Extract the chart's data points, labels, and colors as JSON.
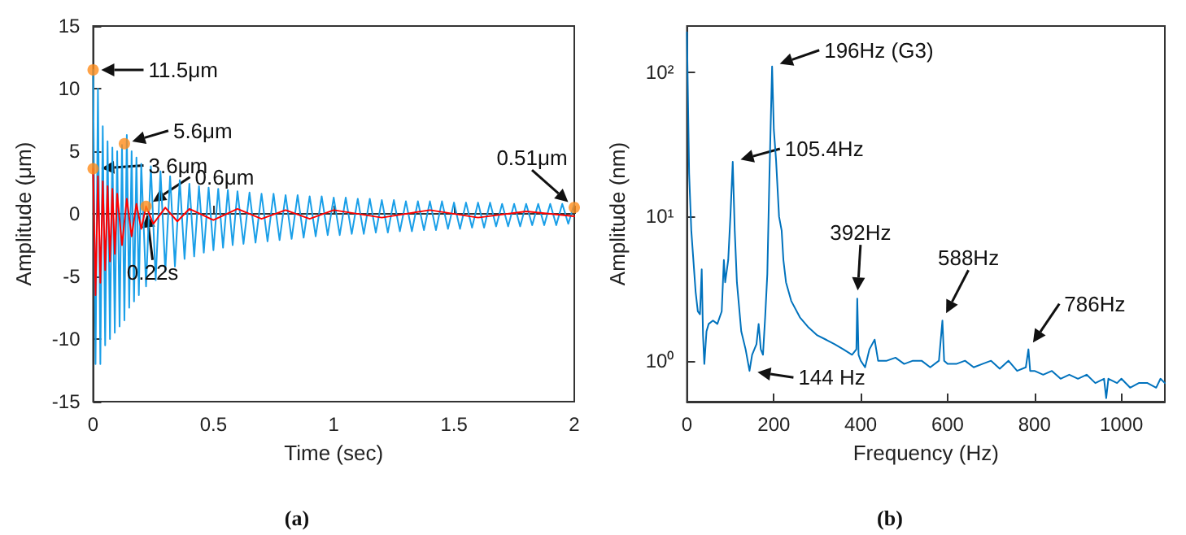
{
  "chart_data": [
    {
      "type": "line",
      "xlabel": "Time (sec)",
      "ylabel": "Amplitude (μm)",
      "xlim": [
        0,
        2
      ],
      "xticks": [
        0,
        0.5,
        1,
        1.5,
        2
      ],
      "ylim": [
        -15,
        15
      ],
      "yticks": [
        -15,
        -10,
        -5,
        0,
        5,
        10,
        15
      ],
      "marker": "none",
      "line_style": "solid",
      "series": [
        {
          "color": "#1a9fe8",
          "x": [
            0,
            0.01,
            0.02,
            0.03,
            0.04,
            0.05,
            0.06,
            0.07,
            0.08,
            0.09,
            0.1,
            0.11,
            0.12,
            0.13,
            0.14,
            0.15,
            0.16,
            0.17,
            0.18,
            0.19,
            0.2,
            0.22,
            0.24,
            0.26,
            0.28,
            0.3,
            0.32,
            0.34,
            0.36,
            0.38,
            0.4,
            0.42,
            0.44,
            0.46,
            0.48,
            0.5,
            0.52,
            0.54,
            0.56,
            0.58,
            0.6,
            0.625,
            0.65,
            0.675,
            0.7,
            0.725,
            0.75,
            0.775,
            0.8,
            0.825,
            0.85,
            0.875,
            0.9,
            0.925,
            0.95,
            0.975,
            1,
            1.025,
            1.05,
            1.075,
            1.1,
            1.125,
            1.15,
            1.175,
            1.2,
            1.225,
            1.25,
            1.275,
            1.3,
            1.325,
            1.35,
            1.375,
            1.4,
            1.425,
            1.45,
            1.475,
            1.5,
            1.525,
            1.55,
            1.575,
            1.6,
            1.625,
            1.65,
            1.675,
            1.7,
            1.725,
            1.75,
            1.775,
            1.8,
            1.825,
            1.85,
            1.875,
            1.9,
            1.925,
            1.95,
            1.975,
            2
          ],
          "values": [
            11.5,
            -12,
            10,
            -12,
            7,
            -10.5,
            5.8,
            -10,
            5.3,
            -9.5,
            5,
            -9,
            5.5,
            -8.5,
            6.3,
            -7.5,
            5,
            -7,
            4.5,
            -6.5,
            4,
            -5.8,
            3.8,
            -5.3,
            3.4,
            -4.6,
            3,
            -4.2,
            2.7,
            -3.6,
            2.4,
            -3.4,
            2.2,
            -3.1,
            2.1,
            -2.9,
            2,
            -2.7,
            1.9,
            -2.5,
            1.8,
            -2.4,
            1.7,
            -2.3,
            1.6,
            -2.2,
            1.6,
            -2.1,
            1.5,
            -2,
            1.5,
            -1.9,
            1.4,
            -1.8,
            1.4,
            -1.7,
            1.3,
            -1.7,
            1.3,
            -1.6,
            1.2,
            -1.6,
            1.2,
            -1.5,
            1.1,
            -1.5,
            1.1,
            -1.4,
            1,
            -1.4,
            1,
            -1.3,
            1,
            -1.3,
            1,
            -1.2,
            0.9,
            -1.2,
            0.9,
            -1.1,
            0.9,
            -1.1,
            0.9,
            -1,
            0.8,
            -1,
            0.8,
            -1,
            0.8,
            -0.9,
            0.8,
            -0.9,
            0.8,
            -0.9,
            0.8,
            -0.8,
            0.8
          ]
        },
        {
          "color": "#ff0000",
          "x": [
            0,
            0.01,
            0.02,
            0.03,
            0.04,
            0.05,
            0.06,
            0.07,
            0.08,
            0.09,
            0.1,
            0.12,
            0.14,
            0.16,
            0.18,
            0.2,
            0.22,
            0.25,
            0.3,
            0.35,
            0.4,
            0.5,
            0.6,
            0.7,
            0.8,
            0.9,
            1,
            1.2,
            1.4,
            1.6,
            1.8,
            2
          ],
          "values": [
            3.6,
            -6.5,
            3,
            -5.5,
            2.6,
            -4.5,
            2.2,
            -3.8,
            2,
            -3.2,
            1.6,
            -2.5,
            1.2,
            -1.8,
            0.8,
            -1.2,
            0.6,
            -0.8,
            0.5,
            -0.6,
            0.4,
            -0.5,
            0.4,
            -0.4,
            0.3,
            -0.4,
            0.3,
            -0.3,
            0.3,
            -0.3,
            0.2,
            -0.2
          ]
        },
        {
          "type": "scatter",
          "marker": "circle",
          "color": "#ff8c1a",
          "x": [
            0,
            0.13,
            0,
            0.22,
            2
          ],
          "values": [
            11.5,
            5.6,
            3.6,
            0.6,
            0.51
          ]
        }
      ],
      "annotations": [
        {
          "text": "11.5μm",
          "x": 0,
          "y": 11.5
        },
        {
          "text": "5.6μm",
          "x": 0.13,
          "y": 5.6
        },
        {
          "text": "3.6μm",
          "x": 0,
          "y": 3.6
        },
        {
          "text": "0.6μm",
          "x": 0.22,
          "y": 0.6
        },
        {
          "text": "0.22s",
          "x": 0.22,
          "y": 0.6
        },
        {
          "text": "0.51μm",
          "x": 2,
          "y": 0.51
        },
        "(a)"
      ]
    },
    {
      "type": "line",
      "xlabel": "Frequency (Hz)",
      "ylabel": "Amplitude (nm)",
      "log": "y",
      "xlim": [
        0,
        1100
      ],
      "xticks": [
        0,
        200,
        400,
        600,
        800,
        1000
      ],
      "ylim": [
        0.52,
        210
      ],
      "yticks": [
        {
          "value": 1,
          "label": "10⁰"
        },
        {
          "value": 10,
          "label": "10¹"
        },
        {
          "value": 100,
          "label": "10²"
        }
      ],
      "marker": "none",
      "line_style": "solid",
      "series": [
        {
          "color": "#0072bd",
          "x": [
            0,
            5,
            10,
            20,
            25,
            30,
            34,
            37,
            40,
            45,
            50,
            60,
            70,
            80,
            85,
            88,
            95,
            100,
            105.4,
            110,
            115,
            125,
            135,
            144,
            150,
            160,
            165,
            170,
            175,
            180,
            185,
            190,
            196,
            200,
            205,
            212,
            218,
            222,
            228,
            240,
            260,
            280,
            300,
            320,
            340,
            360,
            380,
            390,
            392,
            395,
            400,
            410,
            420,
            432,
            440,
            460,
            480,
            500,
            520,
            540,
            560,
            580,
            588,
            592,
            600,
            620,
            640,
            660,
            680,
            700,
            720,
            740,
            760,
            780,
            786,
            790,
            800,
            820,
            840,
            860,
            880,
            900,
            920,
            940,
            960,
            965,
            970,
            990,
            1000,
            1020,
            1040,
            1060,
            1080,
            1090,
            1100
          ],
          "values": [
            190,
            20,
            8,
            3,
            2.2,
            2.1,
            4.3,
            1.5,
            0.95,
            1.6,
            1.8,
            1.9,
            1.8,
            2.2,
            5,
            3.5,
            5,
            10,
            24,
            8,
            3.5,
            1.6,
            1.2,
            0.85,
            1.1,
            1.3,
            1.8,
            1.2,
            1.1,
            2,
            4,
            20,
            110,
            40,
            25,
            10,
            8,
            5,
            3.5,
            2.6,
            2,
            1.7,
            1.5,
            1.4,
            1.3,
            1.2,
            1.1,
            1.2,
            2.7,
            1.1,
            1,
            0.9,
            1.2,
            1.4,
            1,
            1,
            1.05,
            0.95,
            1,
            1,
            0.9,
            1,
            1.9,
            1,
            0.95,
            0.95,
            1,
            0.9,
            0.95,
            1,
            0.88,
            1,
            0.85,
            0.9,
            1.2,
            0.85,
            0.85,
            0.8,
            0.85,
            0.75,
            0.8,
            0.75,
            0.8,
            0.7,
            0.75,
            0.55,
            0.75,
            0.7,
            0.75,
            0.65,
            0.7,
            0.7,
            0.65,
            0.75,
            0.7
          ]
        }
      ],
      "annotations": [
        {
          "text": "196Hz (G3)",
          "x": 196,
          "y": 110
        },
        {
          "text": "105.4Hz",
          "x": 105.4,
          "y": 24
        },
        {
          "text": "392Hz",
          "x": 392,
          "y": 2.7
        },
        {
          "text": "588Hz",
          "x": 588,
          "y": 1.9
        },
        {
          "text": "786Hz",
          "x": 786,
          "y": 1.2
        },
        {
          "text": "144 Hz",
          "x": 144,
          "y": 0.85
        },
        "(b)"
      ]
    }
  ]
}
